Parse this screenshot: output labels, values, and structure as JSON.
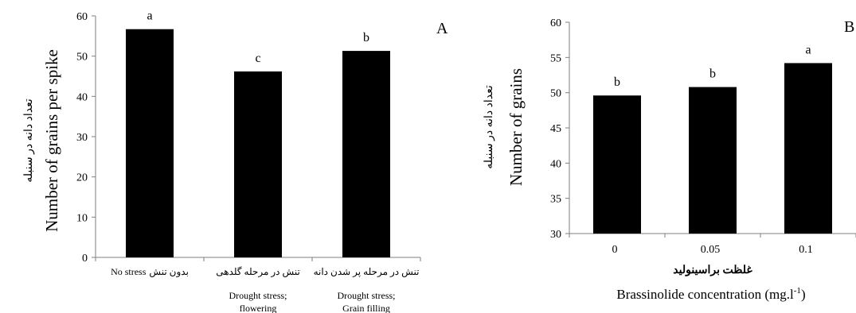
{
  "chart_data": [
    {
      "type": "bar",
      "panel_label": "A",
      "ylabel": "Number of grains per spike",
      "ylabel_fa": "تعداد دانه در سنبله",
      "ylim": [
        0,
        60
      ],
      "yticks": [
        "0",
        "10",
        "20",
        "30",
        "40",
        "50",
        "60"
      ],
      "categories": [
        {
          "fa": "بدون تنش",
          "en": "No stress",
          "en2": ""
        },
        {
          "fa": "تنش در مرحله گلدهی",
          "en": "Drought stress;",
          "en2": "flowering"
        },
        {
          "fa": "تنش در مرحله پر شدن دانه",
          "en": "Drought stress;",
          "en2": "Grain filling"
        }
      ],
      "values": [
        56.7,
        46.2,
        51.3
      ],
      "letters": [
        "a",
        "c",
        "b"
      ],
      "color": "#000000"
    },
    {
      "type": "bar",
      "panel_label": "B",
      "ylabel": "Number of grains",
      "ylabel_fa": "تعداد دانه در سنبله",
      "xlabel": "Brassinolide concentration (mg.l",
      "xlabel_sup": "-1",
      "xlabel_end": ")",
      "xlabel_fa": "غلظت براسینولید",
      "ylim": [
        30,
        60
      ],
      "yticks": [
        "30",
        "35",
        "40",
        "45",
        "50",
        "55",
        "60"
      ],
      "categories": [
        "0",
        "0.05",
        "0.1"
      ],
      "values": [
        49.6,
        50.8,
        54.2
      ],
      "letters": [
        "b",
        "b",
        "a"
      ],
      "color": "#000000"
    }
  ]
}
